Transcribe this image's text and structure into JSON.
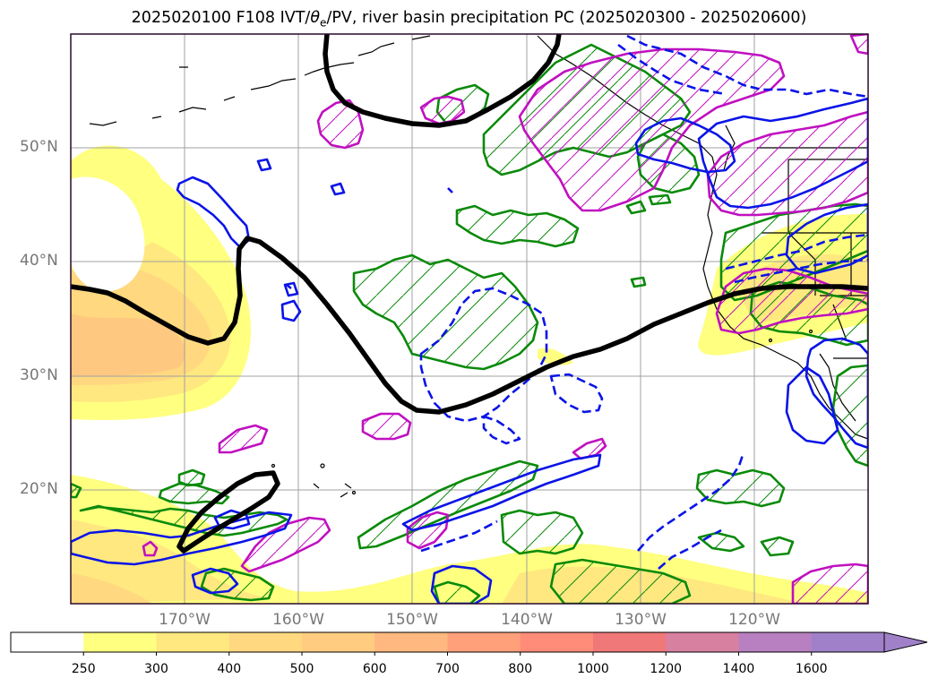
{
  "title": {
    "prefix": "2025020100 F108 IVT/",
    "theta": "θ",
    "theta_sub": "e",
    "suffix": "/PV, river basin precipitation PC (2025020300 - 2025020600)"
  },
  "axes": {
    "lat_labels": [
      "50°N",
      "40°N",
      "30°N",
      "20°N"
    ],
    "lon_labels": [
      "170°W",
      "160°W",
      "150°W",
      "140°W",
      "130°W",
      "120°W"
    ]
  },
  "colorbar": {
    "labels": [
      "250",
      "300",
      "400",
      "500",
      "600",
      "700",
      "800",
      "1000",
      "1200",
      "1400",
      "1600"
    ],
    "colors": [
      "#ffffff",
      "#ffff80",
      "#ffe880",
      "#ffd880",
      "#ffcc80",
      "#ffb880",
      "#ffa07a",
      "#ff8c78",
      "#f07878",
      "#d880a0",
      "#b880c0",
      "#a080c8"
    ],
    "extend": "max"
  },
  "legend_colors": {
    "pv_contour": "#000000",
    "blue_contour": "#0a14e6",
    "green_contour": "#0a8a0a",
    "magenta_contour": "#c010c0"
  }
}
